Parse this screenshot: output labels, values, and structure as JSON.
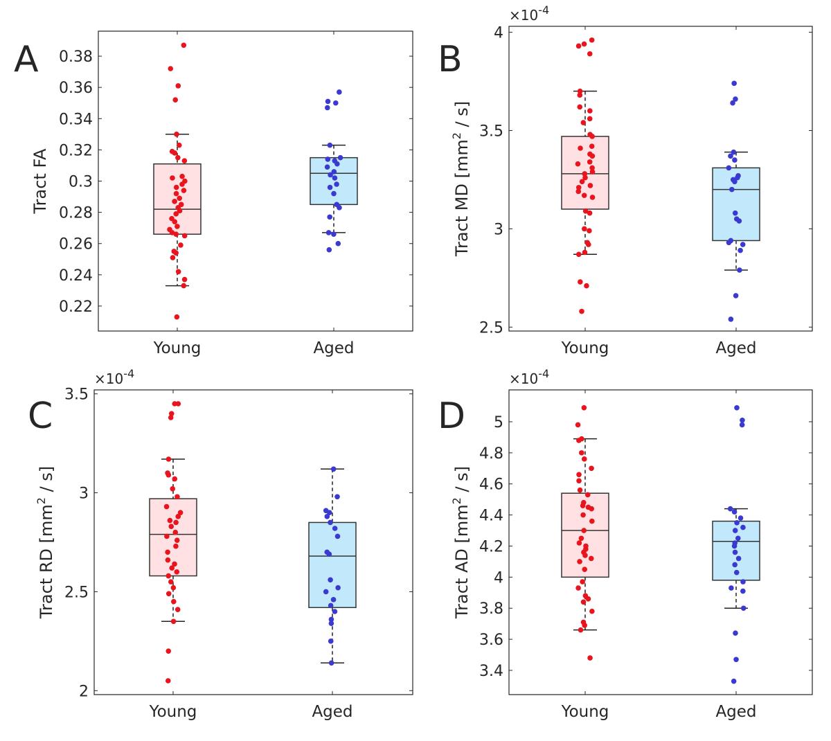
{
  "chart_data": [
    {
      "type": "box",
      "panel_label": "A",
      "ylabel": "Tract FA",
      "ylabel_sup": "",
      "ylabel_suffix": "",
      "exponent": "",
      "categories": [
        "Young",
        "Aged"
      ],
      "ylim": [
        0.204,
        0.396
      ],
      "yticks": [
        0.22,
        0.24,
        0.26,
        0.28,
        0.3,
        0.32,
        0.34,
        0.36,
        0.38
      ],
      "ytick_labels": [
        "0.22",
        "0.24",
        "0.26",
        "0.28",
        "0.3",
        "0.32",
        "0.34",
        "0.36",
        "0.38"
      ],
      "series": [
        {
          "box": {
            "whisker_low": 0.233,
            "q1": 0.266,
            "median": 0.282,
            "q3": 0.311,
            "whisker_high": 0.33
          },
          "points": [
            0.387,
            0.372,
            0.361,
            0.352,
            0.33,
            0.323,
            0.319,
            0.318,
            0.315,
            0.313,
            0.303,
            0.302,
            0.3,
            0.298,
            0.296,
            0.294,
            0.292,
            0.289,
            0.287,
            0.285,
            0.283,
            0.281,
            0.279,
            0.276,
            0.274,
            0.271,
            0.269,
            0.267,
            0.266,
            0.265,
            0.259,
            0.255,
            0.254,
            0.251,
            0.242,
            0.237,
            0.233,
            0.213
          ]
        },
        {
          "box": {
            "whisker_low": 0.267,
            "q1": 0.285,
            "median": 0.305,
            "q3": 0.315,
            "whisker_high": 0.323
          },
          "points": [
            0.357,
            0.351,
            0.35,
            0.347,
            0.323,
            0.315,
            0.314,
            0.313,
            0.311,
            0.309,
            0.306,
            0.304,
            0.302,
            0.298,
            0.296,
            0.292,
            0.285,
            0.283,
            0.277,
            0.267,
            0.266,
            0.26,
            0.256
          ]
        }
      ]
    },
    {
      "type": "box",
      "panel_label": "B",
      "ylabel": "Tract MD [mm",
      "ylabel_sup": "2",
      "ylabel_suffix": " / s]",
      "exponent": "×10",
      "exponent_power": "-4",
      "categories": [
        "Young",
        "Aged"
      ],
      "ylim": [
        2.48,
        4.03
      ],
      "yticks": [
        2.5,
        3,
        3.5,
        4
      ],
      "ytick_labels": [
        "2.5",
        "3",
        "3.5",
        "4"
      ],
      "series": [
        {
          "box": {
            "whisker_low": 2.87,
            "q1": 3.1,
            "median": 3.28,
            "q3": 3.47,
            "whisker_high": 3.7
          },
          "points": [
            3.96,
            3.94,
            3.93,
            3.89,
            3.7,
            3.68,
            3.62,
            3.6,
            3.56,
            3.54,
            3.48,
            3.47,
            3.42,
            3.41,
            3.38,
            3.37,
            3.34,
            3.33,
            3.31,
            3.29,
            3.28,
            3.26,
            3.24,
            3.22,
            3.21,
            3.19,
            3.17,
            3.16,
            3.09,
            3.08,
            3.0,
            2.99,
            2.93,
            2.92,
            2.88,
            2.87,
            2.73,
            2.71,
            2.58
          ]
        },
        {
          "box": {
            "whisker_low": 2.79,
            "q1": 2.94,
            "median": 3.2,
            "q3": 3.31,
            "whisker_high": 3.39
          },
          "points": [
            3.74,
            3.66,
            3.64,
            3.39,
            3.37,
            3.35,
            3.31,
            3.27,
            3.26,
            3.25,
            3.24,
            3.2,
            3.08,
            3.05,
            3.04,
            2.94,
            2.93,
            2.92,
            2.89,
            2.79,
            2.66,
            2.54
          ]
        }
      ]
    },
    {
      "type": "box",
      "panel_label": "C",
      "ylabel": "Tract RD [mm",
      "ylabel_sup": "2",
      "ylabel_suffix": " / s]",
      "exponent": "×10",
      "exponent_power": "-4",
      "categories": [
        "Young",
        "Aged"
      ],
      "ylim": [
        1.98,
        3.52
      ],
      "yticks": [
        2,
        2.5,
        3,
        3.5
      ],
      "ytick_labels": [
        "2",
        "2.5",
        "3",
        "3.5"
      ],
      "series": [
        {
          "box": {
            "whisker_low": 2.35,
            "q1": 2.58,
            "median": 2.79,
            "q3": 2.97,
            "whisker_high": 3.17
          },
          "points": [
            3.45,
            3.45,
            3.4,
            3.38,
            3.17,
            3.1,
            3.09,
            3.07,
            3.02,
            2.98,
            2.93,
            2.9,
            2.88,
            2.86,
            2.85,
            2.83,
            2.8,
            2.78,
            2.76,
            2.73,
            2.7,
            2.66,
            2.64,
            2.62,
            2.6,
            2.58,
            2.55,
            2.52,
            2.49,
            2.45,
            2.41,
            2.35,
            2.2,
            2.05
          ]
        },
        {
          "box": {
            "whisker_low": 2.14,
            "q1": 2.42,
            "median": 2.68,
            "q3": 2.85,
            "whisker_high": 3.12
          },
          "points": [
            3.12,
            2.98,
            2.91,
            2.9,
            2.88,
            2.85,
            2.82,
            2.78,
            2.7,
            2.69,
            2.56,
            2.52,
            2.5,
            2.46,
            2.43,
            2.4,
            2.36,
            2.34,
            2.25,
            2.14
          ]
        }
      ]
    },
    {
      "type": "box",
      "panel_label": "D",
      "ylabel": "Tract AD [mm",
      "ylabel_sup": "2",
      "ylabel_suffix": " / s]",
      "exponent": "×10",
      "exponent_power": "-4",
      "categories": [
        "Young",
        "Aged"
      ],
      "ylim": [
        3.244,
        5.205
      ],
      "yticks": [
        3.4,
        3.6,
        3.8,
        4,
        4.2,
        4.4,
        4.6,
        4.8,
        5
      ],
      "ytick_labels": [
        "3.4",
        "3.6",
        "3.8",
        "4",
        "4.2",
        "4.4",
        "4.6",
        "4.8",
        "5"
      ],
      "series": [
        {
          "box": {
            "whisker_low": 3.66,
            "q1": 4.0,
            "median": 4.3,
            "q3": 4.54,
            "whisker_high": 4.89
          },
          "points": [
            5.09,
            4.98,
            4.89,
            4.88,
            4.8,
            4.76,
            4.7,
            4.66,
            4.62,
            4.56,
            4.53,
            4.48,
            4.46,
            4.45,
            4.44,
            4.4,
            4.36,
            4.3,
            4.25,
            4.22,
            4.2,
            4.18,
            4.16,
            4.14,
            4.12,
            4.1,
            4.05,
            3.97,
            3.93,
            3.88,
            3.86,
            3.84,
            3.78,
            3.71,
            3.69,
            3.66,
            3.48
          ]
        },
        {
          "box": {
            "whisker_low": 3.8,
            "q1": 3.98,
            "median": 4.23,
            "q3": 4.36,
            "whisker_high": 4.44
          },
          "points": [
            5.09,
            5.01,
            4.98,
            4.44,
            4.42,
            4.38,
            4.35,
            4.32,
            4.3,
            4.25,
            4.22,
            4.2,
            4.16,
            4.12,
            4.08,
            4.03,
            3.97,
            3.93,
            3.91,
            3.8,
            3.64,
            3.47,
            3.33
          ]
        }
      ]
    }
  ],
  "colors": {
    "young_points": "#e8141e",
    "young_box": "#ffe1e3",
    "aged_points": "#3a3ad0",
    "aged_box": "#c2e9fb",
    "axis": "#262626"
  }
}
